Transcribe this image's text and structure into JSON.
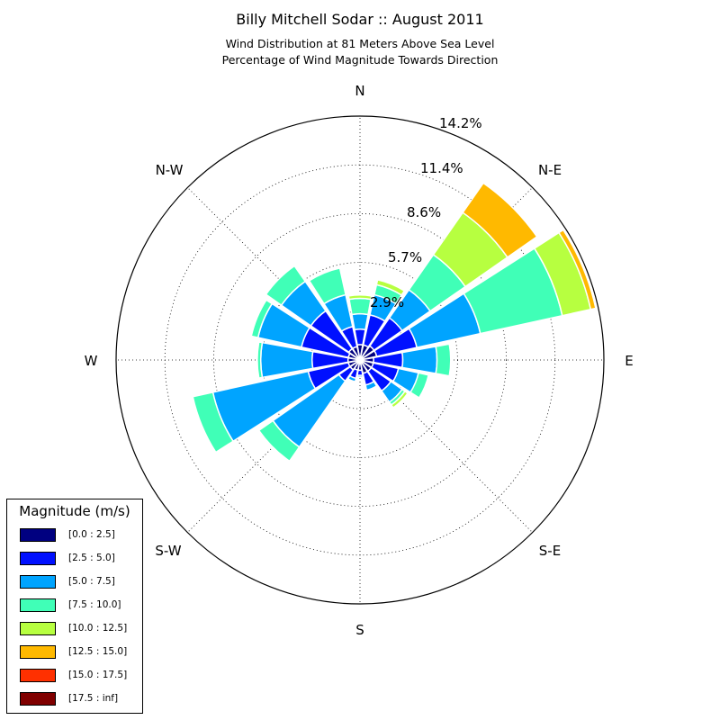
{
  "title": "Billy Mitchell Sodar :: August 2011",
  "subtitle_lines": [
    "Wind Distribution at 81 Meters Above Sea Level",
    "Percentage of Wind Magnitude Towards Direction"
  ],
  "chart_data": {
    "type": "windrose",
    "unit": "%",
    "direction_labels": [
      "N",
      "N-E",
      "E",
      "S-E",
      "S",
      "S-W",
      "W",
      "N-W"
    ],
    "ring_labels": [
      "2.9%",
      "5.7%",
      "8.6%",
      "11.4%",
      "14.2%"
    ],
    "ring_values": [
      2.85,
      5.7,
      8.55,
      11.4,
      14.25
    ],
    "rmax": 14.25,
    "legend_title": "Magnitude (m/s)",
    "bins": [
      {
        "label": "[0.0 : 2.5]",
        "color": "#000080"
      },
      {
        "label": "[2.5 : 5.0]",
        "color": "#0010ff"
      },
      {
        "label": "[5.0 : 7.5]",
        "color": "#00a4ff"
      },
      {
        "label": "[7.5 : 10.0]",
        "color": "#40ffb7"
      },
      {
        "label": "[10.0 : 12.5]",
        "color": "#b7ff40"
      },
      {
        "label": "[12.5 : 15.0]",
        "color": "#ffb900"
      },
      {
        "label": "[15.0 : 17.5]",
        "color": "#ff3000"
      },
      {
        "label": "[17.5 : inf]",
        "color": "#800000"
      }
    ],
    "sectors": [
      {
        "direction_deg": 0,
        "cumulative": [
          0.9,
          1.8,
          2.7,
          3.6,
          3.8
        ]
      },
      {
        "direction_deg": 22.5,
        "cumulative": [
          0.9,
          2.7,
          3.9,
          4.5,
          4.8
        ]
      },
      {
        "direction_deg": 45,
        "cumulative": [
          1.0,
          3.0,
          5.0,
          7.5,
          10.5,
          12.6
        ]
      },
      {
        "direction_deg": 67.5,
        "cumulative": [
          1.0,
          3.4,
          7.2,
          12.1,
          13.8,
          14.1
        ]
      },
      {
        "direction_deg": 90,
        "cumulative": [
          0.8,
          2.5,
          4.5,
          5.3
        ]
      },
      {
        "direction_deg": 112.5,
        "cumulative": [
          0.8,
          2.3,
          3.5,
          4.1
        ]
      },
      {
        "direction_deg": 135,
        "cumulative": [
          0.8,
          2.2,
          3.0,
          3.2,
          3.4
        ]
      },
      {
        "direction_deg": 157.5,
        "cumulative": [
          0.8,
          1.5,
          1.8
        ]
      },
      {
        "direction_deg": 180,
        "cumulative": [
          0.6,
          0.9,
          1.0
        ]
      },
      {
        "direction_deg": 202.5,
        "cumulative": [
          0.6,
          1.1,
          1.3
        ]
      },
      {
        "direction_deg": 225,
        "cumulative": [
          0.7,
          1.5,
          6.2,
          7.2
        ]
      },
      {
        "direction_deg": 247.5,
        "cumulative": [
          0.7,
          3.1,
          8.8,
          10.0
        ]
      },
      {
        "direction_deg": 270,
        "cumulative": [
          0.7,
          2.8,
          5.8,
          6.0
        ]
      },
      {
        "direction_deg": 292.5,
        "cumulative": [
          0.7,
          3.5,
          6.1,
          6.5
        ]
      },
      {
        "direction_deg": 315,
        "cumulative": [
          0.8,
          3.5,
          5.6,
          6.7
        ]
      },
      {
        "direction_deg": 337.5,
        "cumulative": [
          0.8,
          2.0,
          3.9,
          5.5
        ]
      }
    ]
  }
}
